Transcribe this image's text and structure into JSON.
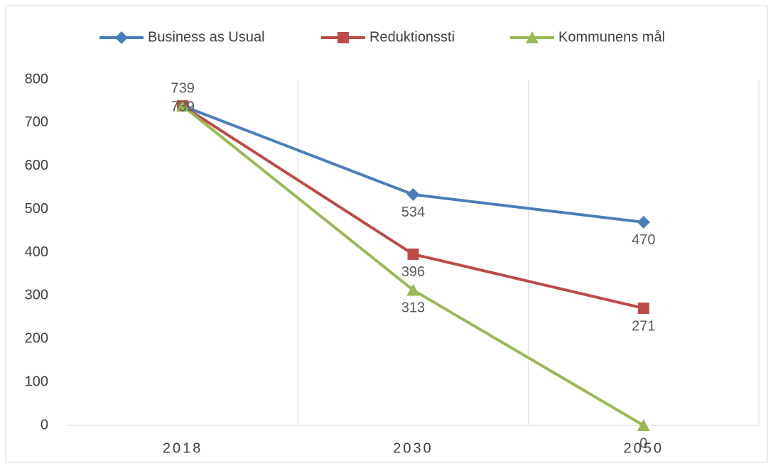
{
  "chart_data": {
    "type": "line",
    "categories": [
      "2018",
      "2030",
      "2050"
    ],
    "series": [
      {
        "name": "Business as Usual",
        "color": "#4a7ebb",
        "marker": "diamond",
        "values": [
          739,
          534,
          470
        ]
      },
      {
        "name": "Reduktionssti",
        "color": "#be4b48",
        "marker": "square",
        "values": [
          739,
          396,
          271
        ]
      },
      {
        "name": "Kommunens mål",
        "color": "#98b954",
        "marker": "triangle",
        "values": [
          739,
          313,
          0
        ]
      }
    ],
    "ylim": [
      0,
      800
    ],
    "yticks": [
      0,
      100,
      200,
      300,
      400,
      500,
      600,
      700,
      800
    ],
    "legend": "top",
    "grid": true
  }
}
